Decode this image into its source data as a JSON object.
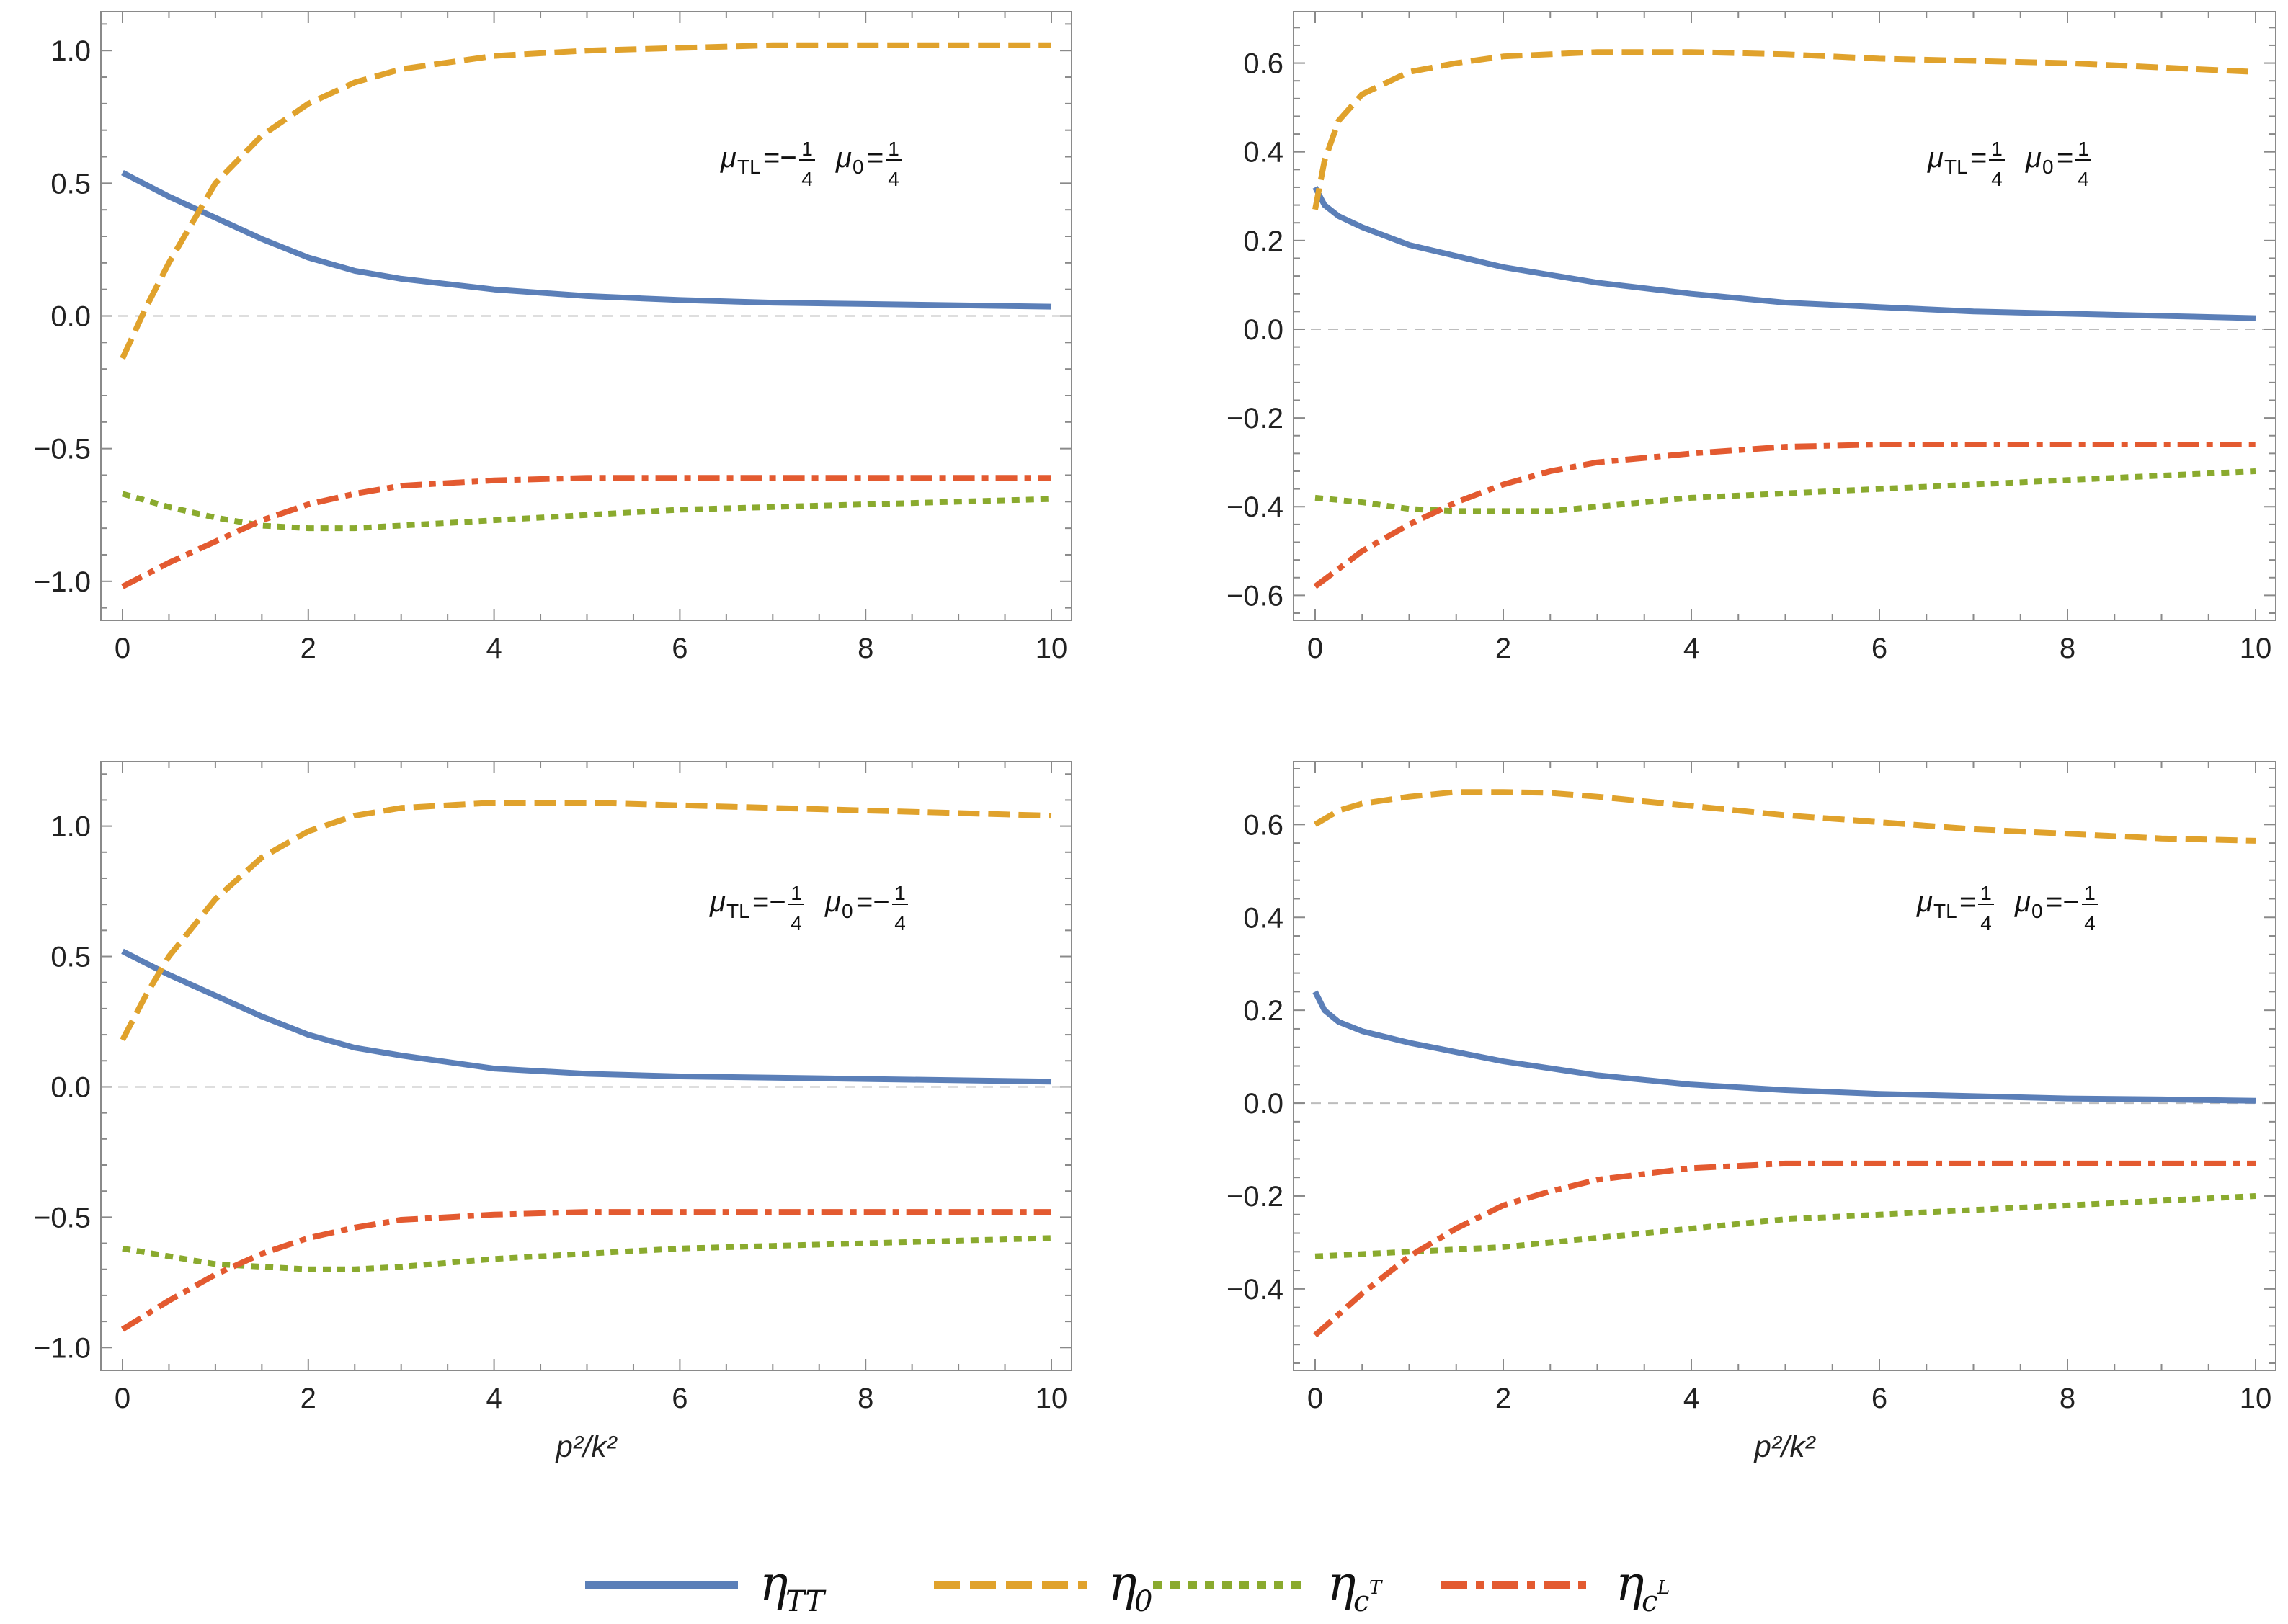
{
  "colors": {
    "eta_TT": "#5B7FB8",
    "eta_0": "#E0A22C",
    "eta_cT": "#8AAA2E",
    "eta_cL": "#E35A30"
  },
  "legend": {
    "items": [
      {
        "key": "eta_TT",
        "sym": "η",
        "sub": "TT",
        "sup": "",
        "dash": "solid"
      },
      {
        "key": "eta_0",
        "sym": "η",
        "sub": "0",
        "sup": "",
        "dash": "dashed"
      },
      {
        "key": "eta_cT",
        "sym": "η",
        "sub": "c",
        "sup": "T",
        "dash": "dotted"
      },
      {
        "key": "eta_cL",
        "sym": "η",
        "sub": "c",
        "sup": "L",
        "dash": "dashdot"
      }
    ]
  },
  "chart_data": [
    {
      "type": "line",
      "panel": "top-left",
      "mu_TL": "−",
      "mu_0": "",
      "xlabel": "",
      "xlim": [
        0,
        10
      ],
      "ylim": [
        -1.12,
        1.12
      ],
      "xticks": [
        0,
        2,
        4,
        6,
        8,
        10
      ],
      "yticks": [
        -1.0,
        -0.5,
        0.0,
        0.5,
        1.0
      ],
      "ytick_labels": [
        "−1.0",
        "−0.5",
        "0.0",
        "0.5",
        "1.0"
      ],
      "series": [
        {
          "key": "eta_TT",
          "x": [
            0,
            0.5,
            1,
            1.5,
            2,
            2.5,
            3,
            4,
            5,
            6,
            7,
            8,
            9,
            10
          ],
          "y": [
            0.54,
            0.45,
            0.37,
            0.29,
            0.22,
            0.17,
            0.14,
            0.1,
            0.075,
            0.06,
            0.05,
            0.045,
            0.04,
            0.035
          ]
        },
        {
          "key": "eta_0",
          "x": [
            0,
            0.25,
            0.5,
            1,
            1.5,
            2,
            2.5,
            3,
            4,
            5,
            6,
            7,
            8,
            9,
            10
          ],
          "y": [
            -0.16,
            0.03,
            0.2,
            0.5,
            0.68,
            0.8,
            0.88,
            0.93,
            0.98,
            1.0,
            1.01,
            1.02,
            1.02,
            1.02,
            1.02
          ]
        },
        {
          "key": "eta_cT",
          "x": [
            0,
            0.5,
            1,
            1.5,
            2,
            2.5,
            3,
            4,
            5,
            6,
            7,
            8,
            9,
            10
          ],
          "y": [
            -0.67,
            -0.72,
            -0.76,
            -0.79,
            -0.8,
            -0.8,
            -0.79,
            -0.77,
            -0.75,
            -0.73,
            -0.72,
            -0.71,
            -0.7,
            -0.69
          ]
        },
        {
          "key": "eta_cL",
          "x": [
            0,
            0.5,
            1,
            1.5,
            2,
            2.5,
            3,
            4,
            5,
            6,
            7,
            8,
            9,
            10
          ],
          "y": [
            -1.02,
            -0.93,
            -0.85,
            -0.77,
            -0.71,
            -0.67,
            -0.64,
            -0.62,
            -0.61,
            -0.61,
            -0.61,
            -0.61,
            -0.61,
            -0.61
          ]
        }
      ]
    },
    {
      "type": "line",
      "panel": "top-right",
      "mu_TL": "",
      "mu_0": "",
      "xlabel": "",
      "xlim": [
        0,
        10
      ],
      "ylim": [
        -0.64,
        0.7
      ],
      "xticks": [
        0,
        2,
        4,
        6,
        8,
        10
      ],
      "yticks": [
        -0.6,
        -0.4,
        -0.2,
        0.0,
        0.2,
        0.4,
        0.6
      ],
      "ytick_labels": [
        "−0.6",
        "−0.4",
        "−0.2",
        "0.0",
        "0.2",
        "0.4",
        "0.6"
      ],
      "series": [
        {
          "key": "eta_TT",
          "x": [
            0,
            0.1,
            0.25,
            0.5,
            1,
            2,
            3,
            4,
            5,
            6,
            7,
            8,
            9,
            10
          ],
          "y": [
            0.32,
            0.28,
            0.255,
            0.23,
            0.19,
            0.14,
            0.105,
            0.08,
            0.06,
            0.05,
            0.04,
            0.035,
            0.03,
            0.025
          ]
        },
        {
          "key": "eta_0",
          "x": [
            0,
            0.1,
            0.25,
            0.5,
            1,
            1.5,
            2,
            3,
            4,
            5,
            6,
            7,
            8,
            9,
            10
          ],
          "y": [
            0.27,
            0.38,
            0.47,
            0.53,
            0.58,
            0.6,
            0.615,
            0.625,
            0.625,
            0.62,
            0.61,
            0.605,
            0.6,
            0.59,
            0.58
          ]
        },
        {
          "key": "eta_cT",
          "x": [
            0,
            0.5,
            1,
            1.5,
            2,
            2.5,
            3,
            4,
            5,
            6,
            7,
            8,
            9,
            10
          ],
          "y": [
            -0.38,
            -0.39,
            -0.405,
            -0.41,
            -0.41,
            -0.41,
            -0.4,
            -0.38,
            -0.37,
            -0.36,
            -0.35,
            -0.34,
            -0.33,
            -0.32
          ]
        },
        {
          "key": "eta_cL",
          "x": [
            0,
            0.5,
            1,
            1.5,
            2,
            2.5,
            3,
            4,
            5,
            6,
            7,
            8,
            9,
            10
          ],
          "y": [
            -0.58,
            -0.5,
            -0.44,
            -0.39,
            -0.35,
            -0.32,
            -0.3,
            -0.28,
            -0.265,
            -0.26,
            -0.26,
            -0.26,
            -0.26,
            -0.26
          ]
        }
      ]
    },
    {
      "type": "line",
      "panel": "bottom-left",
      "mu_TL": "−",
      "mu_0": "−",
      "xlabel": "p²/k²",
      "xlim": [
        0,
        10
      ],
      "ylim": [
        -1.06,
        1.22
      ],
      "xticks": [
        0,
        2,
        4,
        6,
        8,
        10
      ],
      "yticks": [
        -1.0,
        -0.5,
        0.0,
        0.5,
        1.0
      ],
      "ytick_labels": [
        "−1.0",
        "−0.5",
        "0.0",
        "0.5",
        "1.0"
      ],
      "series": [
        {
          "key": "eta_TT",
          "x": [
            0,
            0.5,
            1,
            1.5,
            2,
            2.5,
            3,
            4,
            5,
            6,
            7,
            8,
            9,
            10
          ],
          "y": [
            0.52,
            0.43,
            0.35,
            0.27,
            0.2,
            0.15,
            0.12,
            0.07,
            0.05,
            0.04,
            0.035,
            0.03,
            0.025,
            0.02
          ]
        },
        {
          "key": "eta_0",
          "x": [
            0,
            0.25,
            0.5,
            1,
            1.5,
            2,
            2.5,
            3,
            4,
            4.5,
            5,
            6,
            7,
            8,
            9,
            10
          ],
          "y": [
            0.18,
            0.35,
            0.5,
            0.72,
            0.88,
            0.98,
            1.04,
            1.07,
            1.09,
            1.09,
            1.09,
            1.08,
            1.07,
            1.06,
            1.05,
            1.04
          ]
        },
        {
          "key": "eta_cT",
          "x": [
            0,
            0.5,
            1,
            1.5,
            2,
            2.5,
            3,
            4,
            5,
            6,
            7,
            8,
            9,
            10
          ],
          "y": [
            -0.62,
            -0.65,
            -0.68,
            -0.69,
            -0.7,
            -0.7,
            -0.69,
            -0.66,
            -0.64,
            -0.62,
            -0.61,
            -0.6,
            -0.59,
            -0.58
          ]
        },
        {
          "key": "eta_cL",
          "x": [
            0,
            0.5,
            1,
            1.5,
            2,
            2.5,
            3,
            4,
            5,
            6,
            7,
            8,
            9,
            10
          ],
          "y": [
            -0.93,
            -0.82,
            -0.72,
            -0.64,
            -0.58,
            -0.54,
            -0.51,
            -0.49,
            -0.48,
            -0.48,
            -0.48,
            -0.48,
            -0.48,
            -0.48
          ]
        }
      ]
    },
    {
      "type": "line",
      "panel": "bottom-right",
      "mu_TL": "",
      "mu_0": "−",
      "xlabel": "p²/k²",
      "xlim": [
        0,
        10
      ],
      "ylim": [
        -0.56,
        0.72
      ],
      "xticks": [
        0,
        2,
        4,
        6,
        8,
        10
      ],
      "yticks": [
        -0.4,
        -0.2,
        0.0,
        0.2,
        0.4,
        0.6
      ],
      "ytick_labels": [
        "−0.4",
        "−0.2",
        "0.0",
        "0.2",
        "0.4",
        "0.6"
      ],
      "series": [
        {
          "key": "eta_TT",
          "x": [
            0,
            0.1,
            0.25,
            0.5,
            1,
            2,
            3,
            4,
            5,
            6,
            7,
            8,
            9,
            10
          ],
          "y": [
            0.24,
            0.2,
            0.175,
            0.155,
            0.13,
            0.09,
            0.06,
            0.04,
            0.028,
            0.02,
            0.015,
            0.01,
            0.008,
            0.005
          ]
        },
        {
          "key": "eta_0",
          "x": [
            0,
            0.25,
            0.5,
            1,
            1.5,
            2,
            2.5,
            3,
            4,
            5,
            6,
            7,
            8,
            9,
            10
          ],
          "y": [
            0.6,
            0.63,
            0.645,
            0.66,
            0.67,
            0.67,
            0.668,
            0.66,
            0.64,
            0.62,
            0.605,
            0.59,
            0.58,
            0.57,
            0.565
          ]
        },
        {
          "key": "eta_cT",
          "x": [
            0,
            1,
            2,
            3,
            4,
            5,
            6,
            7,
            8,
            9,
            10
          ],
          "y": [
            -0.33,
            -0.32,
            -0.31,
            -0.29,
            -0.27,
            -0.25,
            -0.24,
            -0.23,
            -0.22,
            -0.21,
            -0.2
          ]
        },
        {
          "key": "eta_cL",
          "x": [
            0,
            0.5,
            1,
            1.5,
            2,
            2.5,
            3,
            4,
            5,
            6,
            7,
            8,
            9,
            10
          ],
          "y": [
            -0.5,
            -0.41,
            -0.33,
            -0.27,
            -0.22,
            -0.19,
            -0.165,
            -0.14,
            -0.13,
            -0.13,
            -0.13,
            -0.13,
            -0.13,
            -0.13
          ]
        }
      ]
    }
  ]
}
